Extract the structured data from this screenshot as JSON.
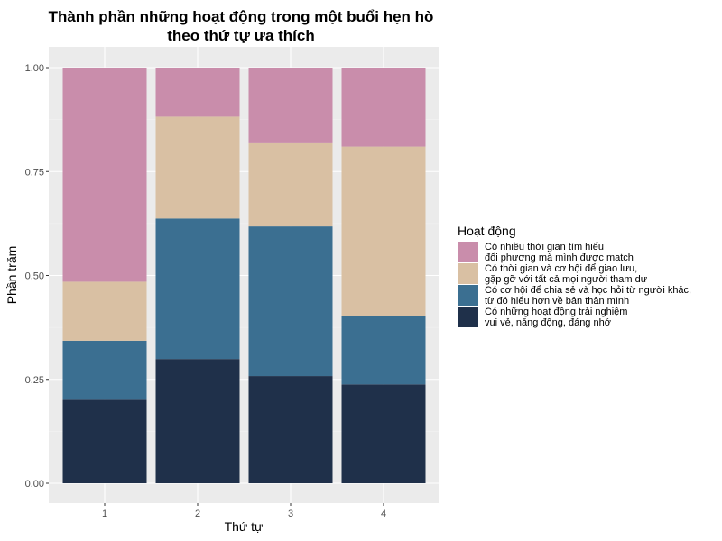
{
  "chart_data": {
    "type": "bar",
    "stacked": true,
    "title": [
      "Thành phần những hoạt động trong một buổi hẹn hò",
      "theo thứ tự ưa thích"
    ],
    "xlabel": "Thứ tự",
    "ylabel": "Phần trăm",
    "categories": [
      "1",
      "2",
      "3",
      "4"
    ],
    "ylim": [
      0,
      1
    ],
    "yticks": [
      "0.00",
      "0.25",
      "0.50",
      "0.75",
      "1.00"
    ],
    "legend_title": "Hoạt động",
    "legend_position": "right",
    "grid": true,
    "series": [
      {
        "label_lines": [
          "Có nhiều thời gian tìm hiểu",
          "đối phương mà mình được match"
        ],
        "color": "#C98DAB",
        "values": [
          0.515,
          0.118,
          0.182,
          0.19
        ]
      },
      {
        "label_lines": [
          "Có thời gian và cơ hội để giao lưu,",
          "gặp gỡ với tất cả mọi người tham dự"
        ],
        "color": "#D9C0A3",
        "values": [
          0.142,
          0.245,
          0.2,
          0.408
        ]
      },
      {
        "label_lines": [
          "Có cơ hội để chia sẻ và học hỏi từ người khác,",
          "từ đó hiểu hơn về bản thân mình"
        ],
        "color": "#3B6F91",
        "values": [
          0.142,
          0.338,
          0.36,
          0.164
        ]
      },
      {
        "label_lines": [
          "Có những hoạt động trải nghiệm",
          "vui vẻ, năng động, đáng nhớ"
        ],
        "color": "#1F304A",
        "values": [
          0.201,
          0.299,
          0.258,
          0.238
        ]
      }
    ]
  }
}
